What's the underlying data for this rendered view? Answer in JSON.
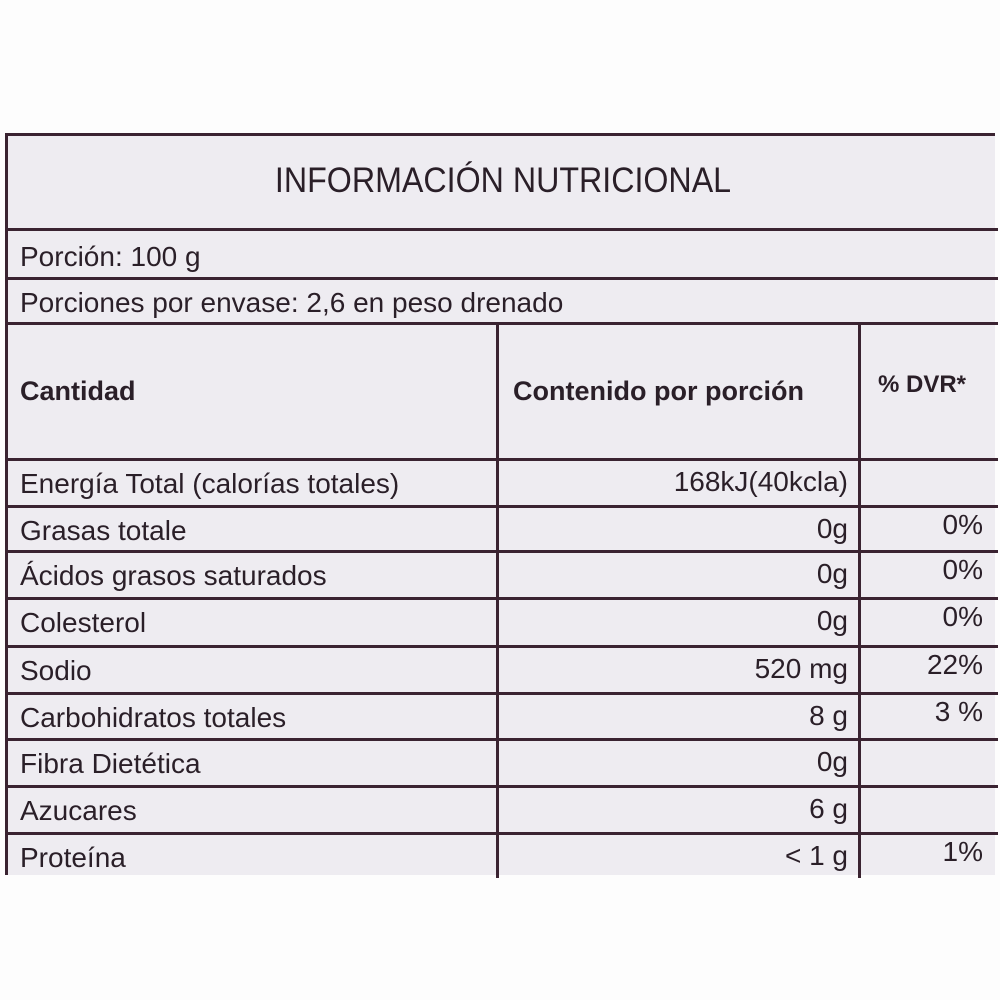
{
  "title": "INFORMACIÓN NUTRICIONAL",
  "portion": "Porción: 100 g",
  "portions_per_container": "Porciones por envase:  2,6 en peso drenado",
  "headers": {
    "quantity": "Cantidad",
    "content": "Contenido por porción",
    "dvr": "% DVR*"
  },
  "rows": [
    {
      "name": "Energía Total (calorías totales)",
      "value": "168kJ(40kcla)",
      "dvr": ""
    },
    {
      "name": "Grasas totale",
      "value": "0g",
      "dvr": "0%"
    },
    {
      "name": "Ácidos grasos saturados",
      "value": "0g",
      "dvr": "0%"
    },
    {
      "name": "Colesterol",
      "value": "0g",
      "dvr": "0%"
    },
    {
      "name": "Sodio",
      "value": "520 mg",
      "dvr": "22%"
    },
    {
      "name": "Carbohidratos totales",
      "value": "8 g",
      "dvr": "3 %"
    },
    {
      "name": "Fibra Dietética",
      "value": "0g",
      "dvr": ""
    },
    {
      "name": "Azucares",
      "value": "6 g",
      "dvr": ""
    },
    {
      "name": "Proteína",
      "value": "< 1 g",
      "dvr": "1%"
    }
  ]
}
